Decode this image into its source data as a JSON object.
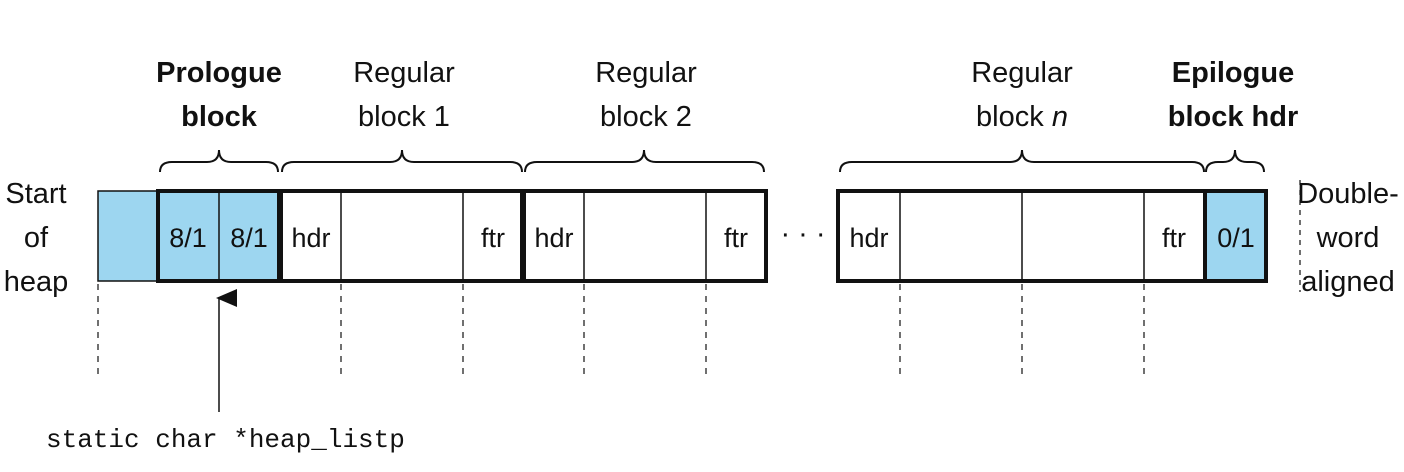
{
  "labels": {
    "start_line1": "Start",
    "start_line2": "of",
    "start_line3": "heap",
    "prologue_line1": "Prologue",
    "prologue_line2": "block",
    "regular1_line1": "Regular",
    "regular1_line2": "block 1",
    "regular2_line1": "Regular",
    "regular2_line2": "block 2",
    "regularn_line1": "Regular",
    "regularn_line2_prefix": "block ",
    "regularn_line2_var": "n",
    "epilogue_line1": "Epilogue",
    "epilogue_line2": "block hdr",
    "dw_line1": "Double-",
    "dw_line2": "word",
    "dw_line3": "aligned",
    "ellipsis": "· · ·",
    "pointer": "static char *heap_listp"
  },
  "cells": {
    "prologue_hdr": "8/1",
    "prologue_ftr": "8/1",
    "block1_hdr": "hdr",
    "block1_ftr": "ftr",
    "block2_hdr": "hdr",
    "block2_ftr": "ftr",
    "blockn_hdr": "hdr",
    "blockn_ftr": "ftr",
    "epilogue_hdr": "0/1"
  },
  "colors": {
    "highlight": "#9dd6f0",
    "stroke": "#111111"
  }
}
